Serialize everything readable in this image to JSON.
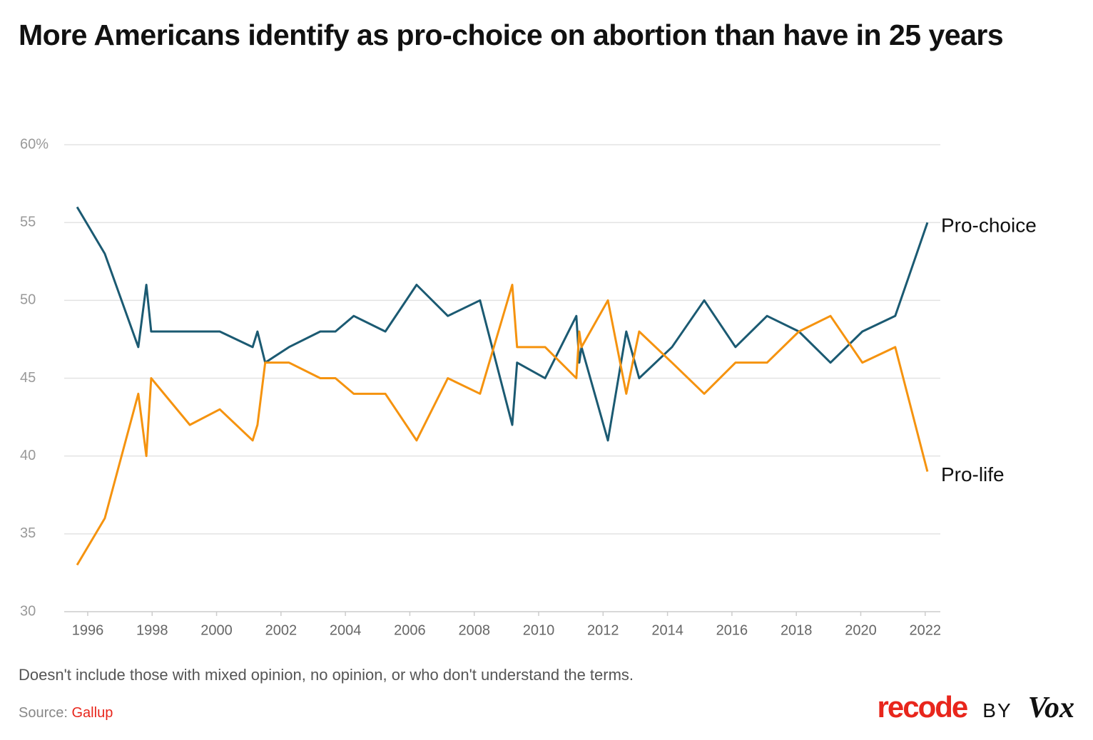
{
  "chart_data": {
    "type": "line",
    "title": "More Americans identify as pro-choice on abortion than have in 25 years",
    "note": "Doesn't include those with mixed opinion, no opinion, or who don't understand the terms.",
    "x": [
      1995.67,
      1996.53,
      1997.57,
      1997.82,
      1997.97,
      1999.17,
      2000.1,
      2001.12,
      2001.27,
      2001.51,
      2002.25,
      2003.22,
      2003.69,
      2004.26,
      2005.24,
      2006.21,
      2007.18,
      2008.18,
      2009.18,
      2009.33,
      2010.2,
      2011.17,
      2011.26,
      2011.33,
      2012.15,
      2012.72,
      2013.12,
      2014.14,
      2015.14,
      2016.11,
      2017.09,
      2018.08,
      2019.06,
      2020.05,
      2021.07,
      2022.07
    ],
    "series": [
      {
        "name": "Pro-choice",
        "color": "#1b5a72",
        "values": [
          56,
          53,
          47,
          51,
          48,
          48,
          48,
          47,
          48,
          46,
          47,
          48,
          48,
          49,
          48,
          51,
          49,
          50,
          42,
          46,
          45,
          49,
          46,
          47,
          41,
          48,
          45,
          47,
          50,
          47,
          49,
          48,
          46,
          48,
          49,
          55
        ]
      },
      {
        "name": "Pro-life",
        "color": "#f5930f",
        "values": [
          33,
          36,
          44,
          40,
          45,
          42,
          43,
          41,
          42,
          46,
          46,
          45,
          45,
          44,
          44,
          41,
          45,
          44,
          51,
          47,
          47,
          45,
          48,
          47,
          50,
          44,
          48,
          46,
          44,
          46,
          46,
          48,
          49,
          46,
          47,
          39
        ]
      }
    ],
    "xlim": [
      1995.27,
      2022.47
    ],
    "xticks": [
      1996,
      1998,
      2000,
      2002,
      2004,
      2006,
      2008,
      2010,
      2012,
      2014,
      2016,
      2018,
      2020,
      2022
    ],
    "ylim": [
      30,
      60
    ],
    "yticks": [
      30,
      35,
      40,
      45,
      50,
      55,
      {
        "value": 60,
        "label": "60%"
      }
    ],
    "grid": true
  },
  "footer": {
    "source_label": "Source:",
    "source": "Gallup",
    "brand": [
      "recode",
      "BY",
      "Vox"
    ]
  }
}
